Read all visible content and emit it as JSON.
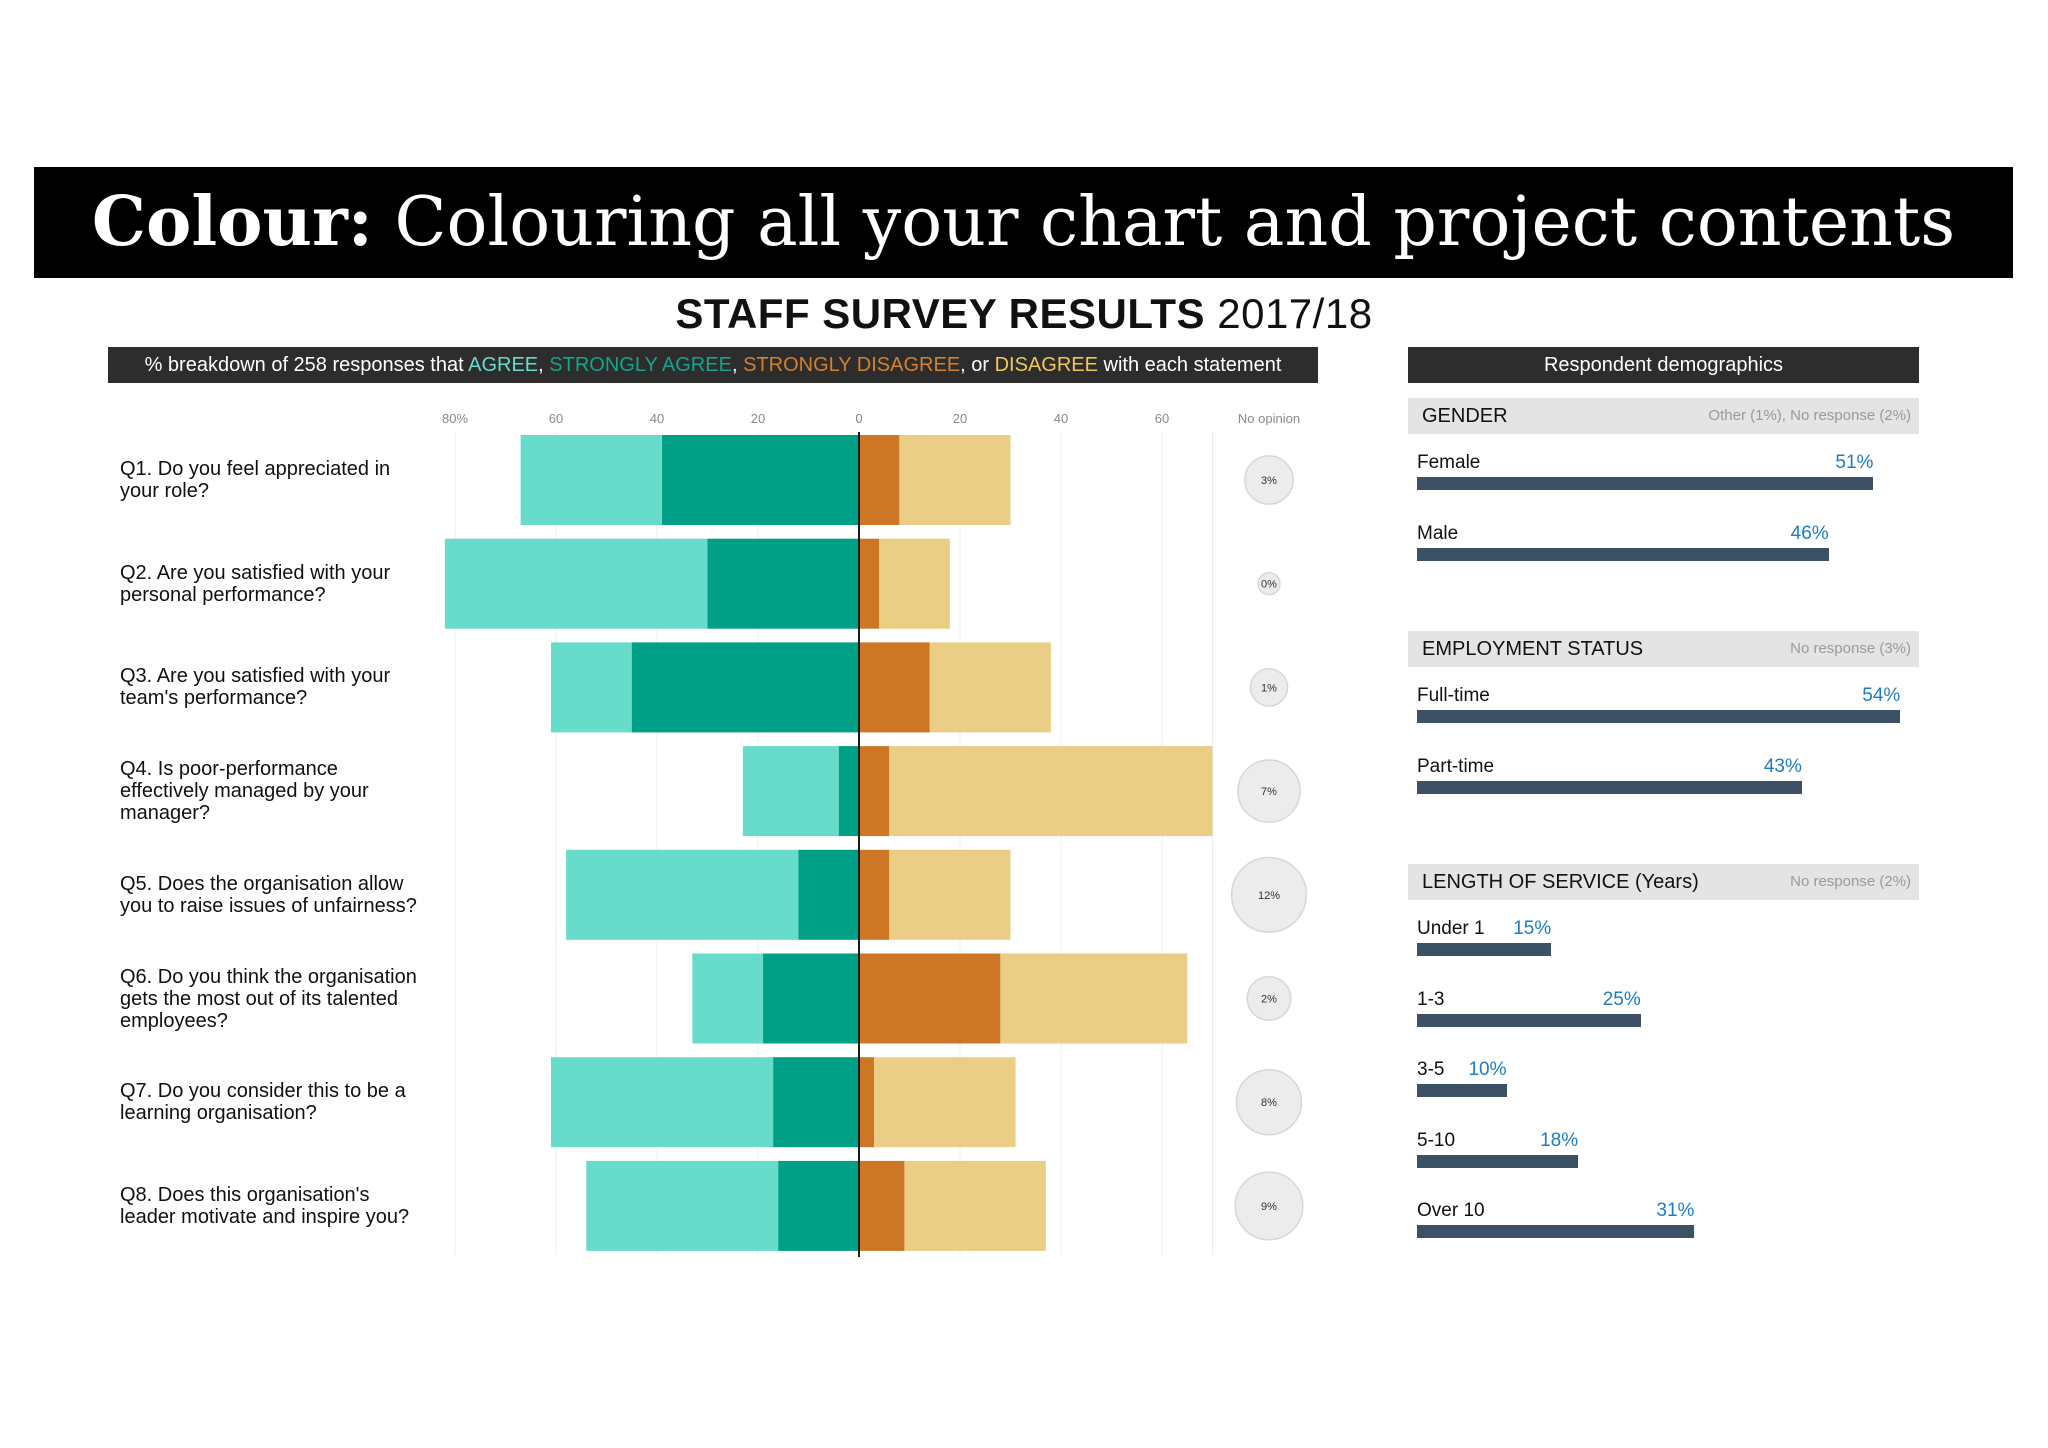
{
  "banner": {
    "bold": "Colour:",
    "rest": " Colouring all your chart and project contents"
  },
  "title": {
    "bold": "STAFF SURVEY RESULTS",
    "rest": " 2017/18"
  },
  "legend": {
    "prefix": "% breakdown of 258 responses that ",
    "agree": "AGREE",
    "sep1": ", ",
    "strongly_agree": "STRONGLY AGREE",
    "sep2": ", ",
    "strongly_disagree": "STRONGLY DISAGREE",
    "sep3": ", or ",
    "disagree": "DISAGREE",
    "suffix": " with each statement"
  },
  "chart_data": {
    "type": "bar",
    "orientation": "diverging-horizontal",
    "axis_ticks_left": [
      "80%",
      "60",
      "40",
      "20"
    ],
    "axis_tick_zero": "0",
    "axis_ticks_right": [
      "20",
      "40",
      "60"
    ],
    "no_opinion_header": "No opinion",
    "xlim": [
      -80,
      70
    ],
    "colors": {
      "agree": "#67dccb",
      "strongly_agree": "#00a086",
      "strongly_disagree": "#cd7625",
      "disagree": "#ebce86"
    },
    "categories": [
      "Q1. Do you feel appreciated in your role?",
      "Q2. Are you satisfied with your personal performance?",
      "Q3. Are you satisfied with your team's performance?",
      "Q4. Is poor-performance effectively managed by your manager?",
      "Q5. Does the organisation allow you to raise issues of unfairness?",
      "Q6. Do you think the organisation gets the most out of its talented employees?",
      "Q7. Do you consider this to be a learning organisation?",
      "Q8. Does this organisation's leader motivate and inspire you?"
    ],
    "series": [
      {
        "name": "STRONGLY AGREE",
        "values": [
          39,
          30,
          45,
          4,
          12,
          19,
          17,
          16
        ]
      },
      {
        "name": "AGREE",
        "values": [
          28,
          52,
          16,
          19,
          46,
          14,
          44,
          38
        ]
      },
      {
        "name": "STRONGLY DISAGREE",
        "values": [
          8,
          4,
          14,
          6,
          6,
          28,
          3,
          9
        ]
      },
      {
        "name": "DISAGREE",
        "values": [
          22,
          14,
          24,
          64,
          24,
          37,
          28,
          28
        ]
      }
    ],
    "no_opinion": [
      "3%",
      "0%",
      "1%",
      "7%",
      "12%",
      "2%",
      "8%",
      "9%"
    ]
  },
  "demographics": {
    "header": "Respondent demographics",
    "sections": [
      {
        "title": "GENDER",
        "note": "Other (1%), No response (2%)",
        "rows": [
          {
            "label": "Female",
            "pct": "51%",
            "value": 51
          },
          {
            "label": "Male",
            "pct": "46%",
            "value": 46
          }
        ]
      },
      {
        "title": "EMPLOYMENT STATUS",
        "note": "No response (3%)",
        "rows": [
          {
            "label": "Full-time",
            "pct": "54%",
            "value": 54
          },
          {
            "label": "Part-time",
            "pct": "43%",
            "value": 43
          }
        ]
      },
      {
        "title": "LENGTH OF SERVICE (Years)",
        "note": "No response (2%)",
        "rows": [
          {
            "label": "Under 1",
            "pct": "15%",
            "value": 15
          },
          {
            "label": "1-3",
            "pct": "25%",
            "value": 25
          },
          {
            "label": "3-5",
            "pct": "10%",
            "value": 10
          },
          {
            "label": "5-10",
            "pct": "18%",
            "value": 18
          },
          {
            "label": "Over 10",
            "pct": "31%",
            "value": 31
          }
        ]
      }
    ]
  }
}
